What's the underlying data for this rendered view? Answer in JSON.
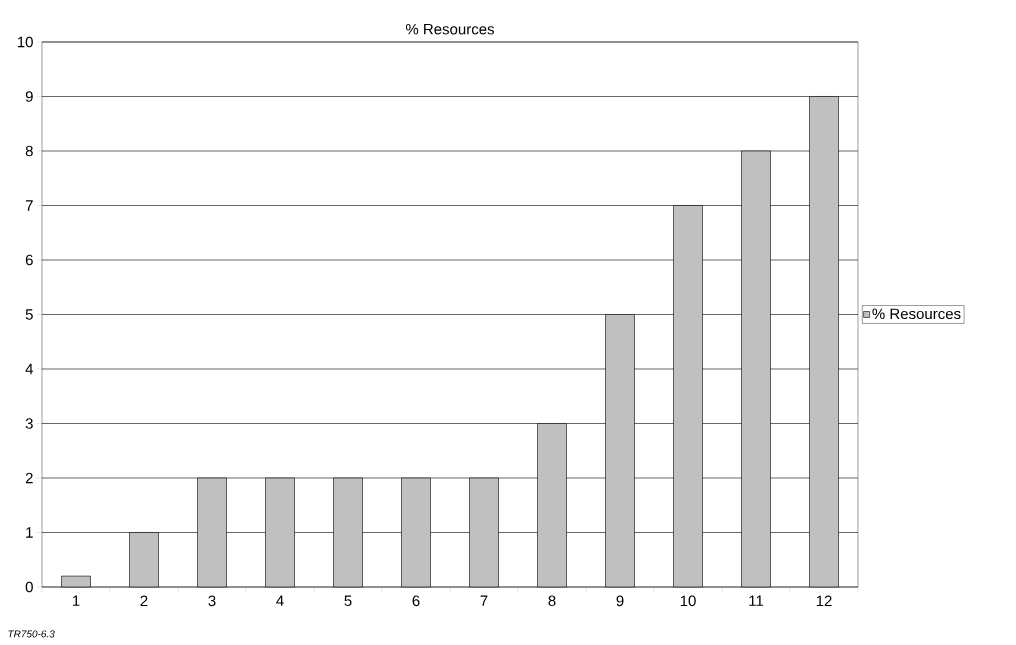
{
  "chart_data": {
    "type": "bar",
    "title": "% Resources",
    "categories": [
      "1",
      "2",
      "3",
      "4",
      "5",
      "6",
      "7",
      "8",
      "9",
      "10",
      "11",
      "12"
    ],
    "series": [
      {
        "name": "% Resources",
        "color": "#c0c0c0",
        "values": [
          0.2,
          1,
          2,
          2,
          2,
          2,
          2,
          3,
          5,
          7,
          8,
          9
        ]
      }
    ],
    "ylim": [
      0,
      10
    ],
    "yticks": [
      0,
      1,
      2,
      3,
      4,
      5,
      6,
      7,
      8,
      9,
      10
    ],
    "grid": "y",
    "legend": "right",
    "annotations": [
      "TR750-6.3"
    ]
  }
}
